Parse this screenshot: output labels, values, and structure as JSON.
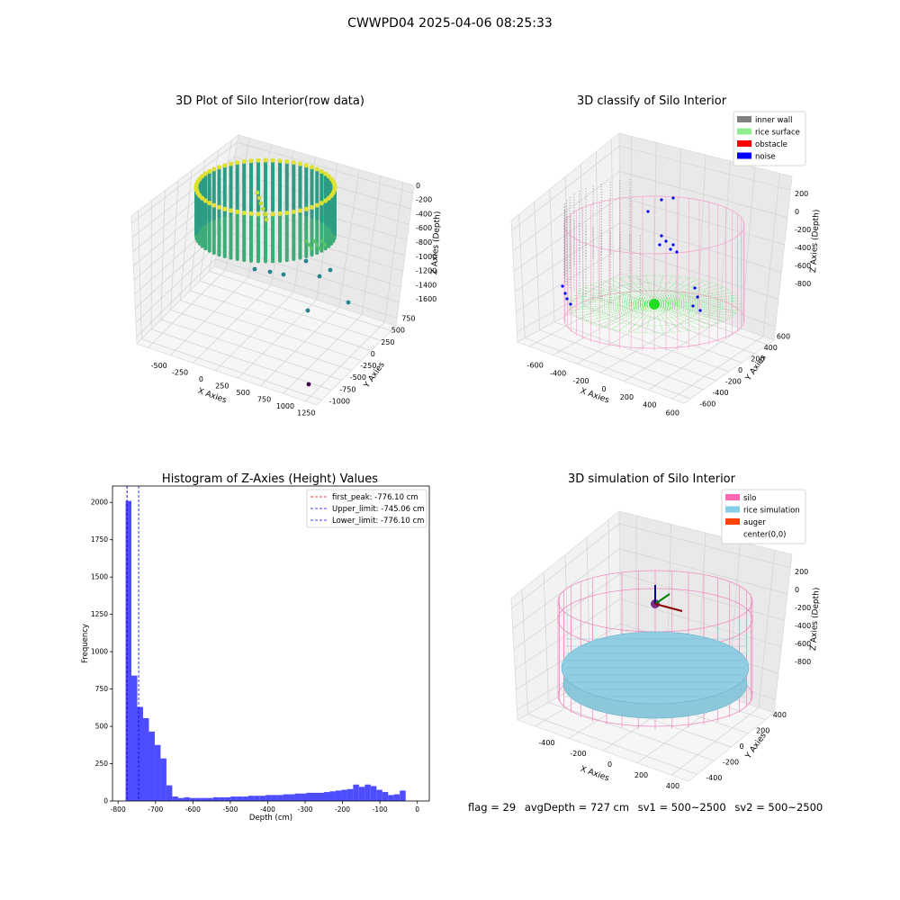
{
  "figure": {
    "title": "CWWPD04 2025-04-06 08:25:33"
  },
  "footer": {
    "flag": "flag = 29",
    "avg_depth": "avgDepth = 727 cm",
    "sv1": "sv1 = 500~2500",
    "sv2": "sv2 = 500~2500"
  },
  "colors": {
    "histogram_bar": "#4d4dff",
    "first_peak_line": "#ff0000",
    "limit_lines": "#0000ff",
    "inner_wall": "#808080",
    "rice_surface": "#90ee90",
    "obstacle": "#ff0000",
    "noise": "#0000ff",
    "silo": "#ff69b4",
    "rice_simulation": "#87ceeb",
    "auger": "#ff4500"
  },
  "chart_data": [
    {
      "type": "scatter",
      "subtype": "3d",
      "title": "3D Plot of Silo Interior(row data)",
      "xlabel": "X Axies",
      "ylabel": "Y Axies",
      "zlabel": "Z Axies (Depth)",
      "xticks": [
        "-500",
        "-250",
        "0",
        "250",
        "500",
        "750",
        "1000",
        "1250"
      ],
      "yticks": [
        "-1000",
        "-750",
        "-500",
        "-250",
        "0",
        "250",
        "500",
        "750"
      ],
      "zticks": [
        "-1600",
        "-1400",
        "-1200",
        "-1000",
        "-800",
        "-600",
        "-400",
        "-200",
        "0"
      ],
      "xlim": [
        -650,
        1350
      ],
      "ylim": [
        -1100,
        850
      ],
      "zlim": [
        -1700,
        100
      ],
      "colormap": "viridis",
      "ring_radius": 450,
      "ring_z_range": [
        -800,
        -100
      ],
      "outliers": [
        {
          "x": 600,
          "y": 150,
          "z": -700
        },
        {
          "x": 700,
          "y": 300,
          "z": -900
        },
        {
          "x": 800,
          "y": -50,
          "z": -1200
        },
        {
          "x": 1250,
          "y": -1000,
          "z": -1600
        },
        {
          "x": 900,
          "y": 600,
          "z": -1500
        }
      ]
    },
    {
      "type": "scatter",
      "subtype": "3d",
      "title": "3D classify of Silo Interior",
      "xlabel": "X Axies",
      "ylabel": "Y Axies",
      "zlabel": "Z Axies (Depth)",
      "xticks": [
        "-600",
        "-400",
        "-200",
        "0",
        "200",
        "400",
        "600"
      ],
      "yticks": [
        "-600",
        "-400",
        "-200",
        "0",
        "200",
        "400",
        "600"
      ],
      "zticks": [
        "-800",
        "-600",
        "-400",
        "-200",
        "0",
        "200"
      ],
      "xlim": [
        -650,
        650
      ],
      "ylim": [
        -650,
        650
      ],
      "zlim": [
        -950,
        300
      ],
      "legend_position": "top-right",
      "series": [
        {
          "name": "inner wall",
          "color": "#808080"
        },
        {
          "name": "rice surface",
          "color": "#90ee90"
        },
        {
          "name": "obstacle",
          "color": "#ff0000"
        },
        {
          "name": "noise",
          "color": "#0000ff"
        }
      ],
      "silo_radius": 550,
      "silo_z_range": [
        -900,
        0
      ],
      "surface_depth": -750
    },
    {
      "type": "bar",
      "subtype": "histogram",
      "title": "Histogram of Z-Axies (Height) Values",
      "xlabel": "Depth (cm)",
      "ylabel": "Frequency",
      "xlim": [
        -815,
        32
      ],
      "ylim": [
        0,
        2110
      ],
      "xticks": [
        -800,
        -700,
        -600,
        -500,
        -400,
        -300,
        -200,
        -100,
        0
      ],
      "yticks": [
        0,
        250,
        500,
        750,
        1000,
        1250,
        1500,
        1750,
        2000
      ],
      "bin_start": -780,
      "bin_width": 15.6,
      "values": [
        2010,
        840,
        630,
        555,
        465,
        375,
        285,
        105,
        30,
        20,
        25,
        20,
        20,
        20,
        20,
        25,
        25,
        25,
        30,
        30,
        30,
        35,
        35,
        35,
        40,
        40,
        40,
        45,
        45,
        50,
        50,
        55,
        55,
        55,
        60,
        65,
        70,
        75,
        80,
        110,
        95,
        110,
        100,
        75,
        60,
        40,
        45,
        70
      ],
      "legend_position": "top-right",
      "lines": [
        {
          "name": "first_peak: -776.10 cm",
          "x": -776.1,
          "style": "dashed",
          "color": "#ff0000"
        },
        {
          "name": "Upper_limit: -745.06 cm",
          "x": -745.06,
          "style": "dashed",
          "color": "#0000ff"
        },
        {
          "name": "Lower_limit: -776.10 cm",
          "x": -776.1,
          "style": "dashed",
          "color": "#0000ff"
        }
      ]
    },
    {
      "type": "scatter",
      "subtype": "3d",
      "title": "3D simulation of Silo Interior",
      "xlabel": "X Axies",
      "ylabel": "Y Axies",
      "zlabel": "Z Axies (Depth)",
      "xticks": [
        "-400",
        "-200",
        "0",
        "200",
        "400"
      ],
      "yticks": [
        "-400",
        "-200",
        "0",
        "200",
        "400"
      ],
      "zticks": [
        "-800",
        "-600",
        "-400",
        "-200",
        "0",
        "200"
      ],
      "xlim": [
        -550,
        550
      ],
      "ylim": [
        -550,
        550
      ],
      "zlim": [
        -950,
        300
      ],
      "legend_position": "top-right",
      "series": [
        {
          "name": "silo",
          "color": "#ff69b4"
        },
        {
          "name": "rice simulation",
          "color": "#87ceeb"
        },
        {
          "name": "auger",
          "color": "#ff4500"
        },
        {
          "name": "center(0,0)",
          "color": "#ffffff"
        }
      ],
      "silo_radius": 500,
      "silo_z_range": [
        -900,
        0
      ],
      "surface_depth": -727
    }
  ]
}
